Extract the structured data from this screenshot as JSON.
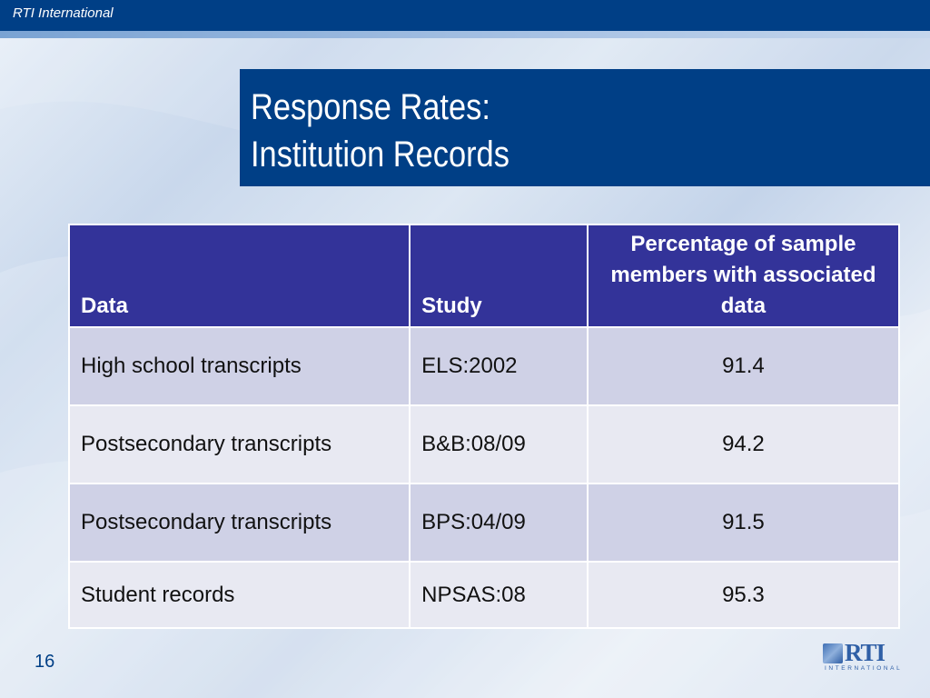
{
  "header": {
    "org_name": "RTI International"
  },
  "title": {
    "line1": "Response Rates:",
    "line2": "Institution Records"
  },
  "table": {
    "columns": [
      "Data",
      "Study",
      "Percentage of sample members with associated data"
    ],
    "rows": [
      {
        "data": "High school transcripts",
        "study": "ELS:2002",
        "pct": "91.4"
      },
      {
        "data": "Postsecondary transcripts",
        "study": "B&B:08/09",
        "pct": "94.2"
      },
      {
        "data": "Postsecondary transcripts",
        "study": "BPS:04/09",
        "pct": "91.5"
      },
      {
        "data": "Student records",
        "study": "NPSAS:08",
        "pct": "95.3"
      }
    ]
  },
  "footer": {
    "page_number": "16",
    "logo_text": "RTI",
    "logo_subtext": "INTERNATIONAL"
  },
  "colors": {
    "brand_blue": "#003f86",
    "table_header": "#333399",
    "row_odd": "#cfd1e6",
    "row_even": "#e8e9f2"
  }
}
